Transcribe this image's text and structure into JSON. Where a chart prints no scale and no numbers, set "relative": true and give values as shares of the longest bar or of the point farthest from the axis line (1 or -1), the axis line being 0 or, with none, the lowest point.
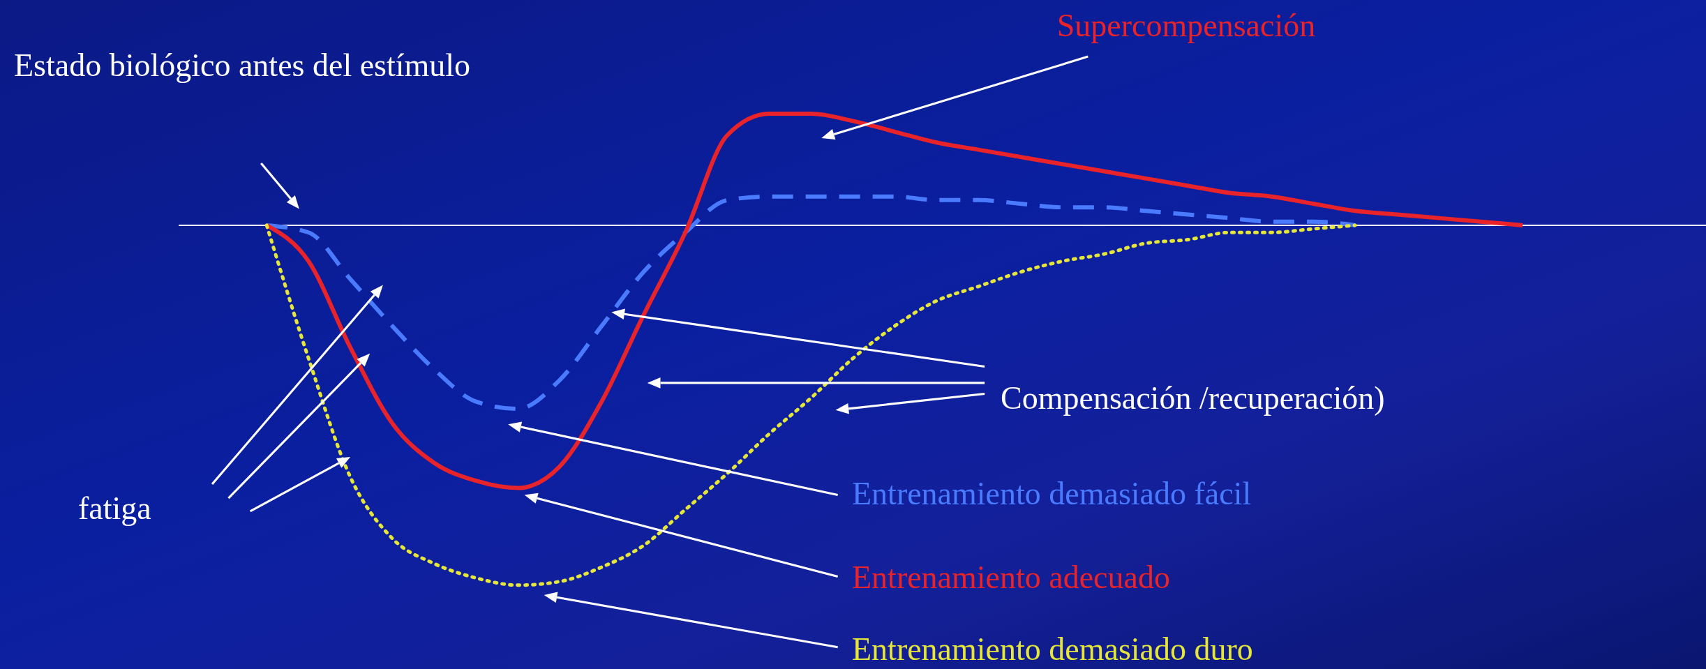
{
  "chart_data": {
    "type": "line",
    "relative": true,
    "legend": false,
    "categories": [
      null,
      null,
      null,
      null,
      null,
      null,
      null,
      null,
      null,
      null,
      null,
      null,
      null,
      null,
      null,
      null,
      null,
      null,
      null,
      null,
      null,
      null,
      null,
      null,
      null,
      null,
      null,
      null,
      null,
      null,
      null
    ],
    "annotations": [
      "Estado biológico antes del estímulo",
      "Supercompensación",
      "fatiga",
      "Compensación /recuperación)"
    ],
    "series": [
      {
        "name": "Entrenamiento demasiado fácil",
        "color": "#4a7bff",
        "line_style": "dashed",
        "values": [
          0,
          -0.02,
          -0.15,
          -0.28,
          -0.4,
          -0.49,
          -0.51,
          -0.43,
          -0.28,
          -0.13,
          -0.02,
          0.07,
          0.08,
          0.08,
          0.08,
          0.08,
          0.07,
          0.07,
          0.06,
          0.05,
          0.05,
          0.04,
          0.03,
          0.02,
          0.01,
          0.01,
          0,
          null,
          null,
          null,
          null
        ]
      },
      {
        "name": "Entrenamiento adecuado",
        "color": "#e8232a",
        "line_style": "solid",
        "values": [
          0,
          -0.1,
          -0.34,
          -0.55,
          -0.66,
          -0.71,
          -0.73,
          -0.67,
          -0.49,
          -0.25,
          -0.02,
          0.25,
          0.31,
          0.31,
          0.29,
          0.26,
          0.23,
          0.21,
          0.19,
          0.17,
          0.15,
          0.13,
          0.11,
          0.09,
          0.08,
          0.06,
          0.04,
          0.03,
          0.02,
          0.01,
          0
        ]
      },
      {
        "name": "Entrenamiento demasiado duro",
        "color": "#e6e63a",
        "line_style": "dotted",
        "values": [
          0,
          -0.37,
          -0.7,
          -0.87,
          -0.94,
          -0.98,
          -1,
          -0.99,
          -0.95,
          -0.89,
          -0.79,
          -0.69,
          -0.58,
          -0.48,
          -0.37,
          -0.28,
          -0.21,
          -0.17,
          -0.13,
          -0.1,
          -0.08,
          -0.05,
          -0.04,
          -0.02,
          -0.02,
          -0.01,
          0,
          null,
          null,
          null,
          null
        ]
      }
    ]
  }
}
